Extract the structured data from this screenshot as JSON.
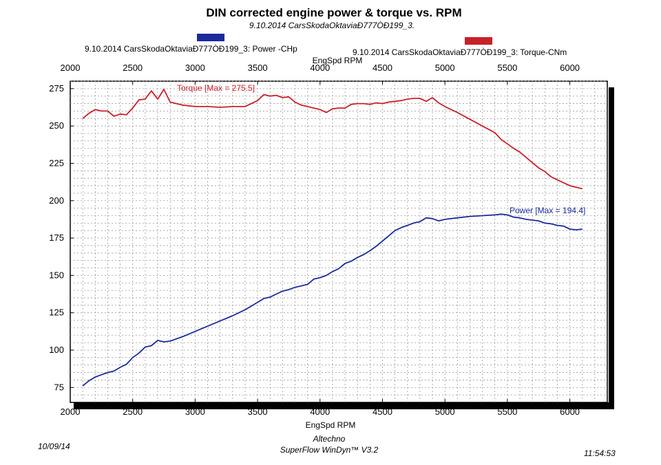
{
  "chart_data": {
    "type": "line",
    "title": "DIN corrected engine power & torque vs. RPM",
    "subtitle": "9.10.2014 CarsSkodaOktaviaÐ777ÒÐ199_3.",
    "xlabel": "EngSpd RPM",
    "xlabel_top": "EngSpd RPM",
    "xlim": [
      2000,
      6300
    ],
    "ylim": [
      65,
      280
    ],
    "x_ticks": [
      2000,
      2500,
      3000,
      3500,
      4000,
      4500,
      5000,
      5500,
      6000
    ],
    "y_ticks": [
      75,
      100,
      125,
      150,
      175,
      200,
      225,
      250,
      275
    ],
    "legend": "top",
    "grid": true,
    "series": [
      {
        "name": "9.10.2014 CarsSkodaOktaviaÐ777ÒÐ199_3: Power -CHp",
        "color": "#1a2a9c",
        "annotation": "Power  [Max = 194.4]",
        "x": [
          2100,
          2150,
          2200,
          2250,
          2300,
          2350,
          2400,
          2450,
          2500,
          2550,
          2600,
          2650,
          2700,
          2750,
          2800,
          2900,
          3000,
          3100,
          3200,
          3300,
          3400,
          3500,
          3550,
          3600,
          3650,
          3700,
          3750,
          3800,
          3850,
          3900,
          3950,
          4000,
          4050,
          4100,
          4150,
          4200,
          4250,
          4300,
          4350,
          4400,
          4450,
          4500,
          4550,
          4600,
          4650,
          4700,
          4750,
          4800,
          4850,
          4900,
          4950,
          5000,
          5100,
          5200,
          5300,
          5400,
          5450,
          5500,
          5550,
          5600,
          5650,
          5700,
          5750,
          5800,
          5850,
          5900,
          5950,
          6000,
          6050,
          6100
        ],
        "y": [
          76,
          79.5,
          82,
          83.5,
          85,
          86,
          88.5,
          90.5,
          95,
          98,
          102,
          103,
          106.5,
          105.5,
          106,
          109,
          112.5,
          116,
          119.5,
          123,
          127,
          132,
          134.5,
          135.5,
          137.5,
          139.5,
          140.5,
          142,
          143,
          144,
          147.5,
          148.5,
          150,
          152.5,
          154.5,
          158,
          159.5,
          162,
          164,
          166.5,
          169.5,
          173,
          176.5,
          180,
          182,
          183.5,
          185,
          186,
          188.5,
          188,
          186.5,
          187.5,
          188.5,
          189.5,
          190,
          190.5,
          191,
          190.5,
          189,
          188.5,
          187.5,
          187,
          186.5,
          185,
          184.5,
          183.5,
          183,
          181,
          180.5,
          181
        ]
      },
      {
        "name": "9.10.2014 CarsSkodaOktaviaÐ777ÒÐ199_3: Torque-CNm",
        "color": "#c8202a",
        "annotation": "Torque [Max = 275.5]",
        "x": [
          2100,
          2150,
          2200,
          2250,
          2300,
          2350,
          2400,
          2450,
          2500,
          2550,
          2600,
          2650,
          2700,
          2750,
          2800,
          2900,
          3000,
          3100,
          3200,
          3300,
          3400,
          3500,
          3550,
          3600,
          3650,
          3700,
          3750,
          3800,
          3850,
          3900,
          3950,
          4000,
          4050,
          4100,
          4150,
          4200,
          4250,
          4300,
          4350,
          4400,
          4450,
          4500,
          4550,
          4600,
          4650,
          4700,
          4750,
          4800,
          4850,
          4900,
          4950,
          5000,
          5100,
          5200,
          5300,
          5400,
          5450,
          5500,
          5550,
          5600,
          5650,
          5700,
          5750,
          5800,
          5850,
          5900,
          5950,
          6000,
          6050,
          6100
        ],
        "y": [
          255,
          258.5,
          261,
          260,
          260,
          256.5,
          258,
          257.5,
          262,
          267.5,
          268,
          273.5,
          268,
          274.5,
          266,
          264,
          263,
          263,
          262.5,
          263,
          263,
          267,
          271,
          270,
          270.5,
          269,
          269.5,
          266,
          264,
          263,
          262,
          261,
          259,
          261.5,
          262,
          262,
          264.5,
          265,
          265,
          264.5,
          265.5,
          265,
          266,
          266.5,
          267,
          268,
          268.5,
          268.5,
          266.5,
          269,
          265.5,
          263,
          259,
          254.5,
          250,
          245.5,
          241,
          238,
          235,
          232.5,
          229,
          225.5,
          222,
          219.5,
          216,
          214,
          212,
          210,
          209,
          208
        ]
      }
    ]
  },
  "footer": {
    "date": "10/09/14",
    "company": "Altechno",
    "software": "SuperFlow WinDyn™ V3.2",
    "time": "11:54:53"
  }
}
